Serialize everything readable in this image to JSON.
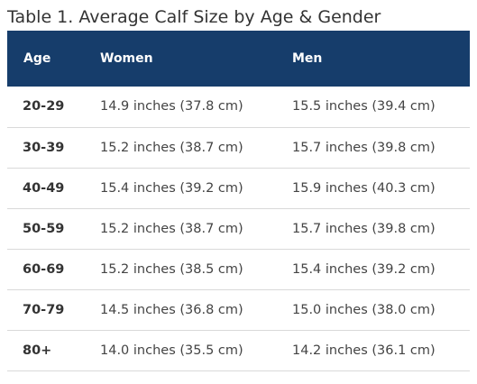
{
  "caption": "Table 1. Average Calf Size by Age & Gender",
  "headers": {
    "age": "Age",
    "women": "Women",
    "men": "Men"
  },
  "rows": [
    {
      "age": "20-29",
      "women": "14.9 inches (37.8 cm)",
      "men": "15.5 inches (39.4 cm)"
    },
    {
      "age": "30-39",
      "women": "15.2 inches (38.7 cm)",
      "men": "15.7 inches (39.8 cm)"
    },
    {
      "age": "40-49",
      "women": "15.4 inches (39.2 cm)",
      "men": "15.9 inches (40.3 cm)"
    },
    {
      "age": "50-59",
      "women": "15.2 inches (38.7 cm)",
      "men": "15.7 inches (39.8 cm)"
    },
    {
      "age": "60-69",
      "women": "15.2 inches (38.5 cm)",
      "men": "15.4 inches (39.2 cm)"
    },
    {
      "age": "70-79",
      "women": "14.5 inches (36.8 cm)",
      "men": "15.0 inches (38.0 cm)"
    },
    {
      "age": "80+",
      "women": "14.0 inches (35.5 cm)",
      "men": "14.2 inches (36.1 cm)"
    }
  ],
  "colors": {
    "header_bg": "#163d6b",
    "header_text": "#ffffff",
    "row_divider": "#d9d9d9"
  }
}
